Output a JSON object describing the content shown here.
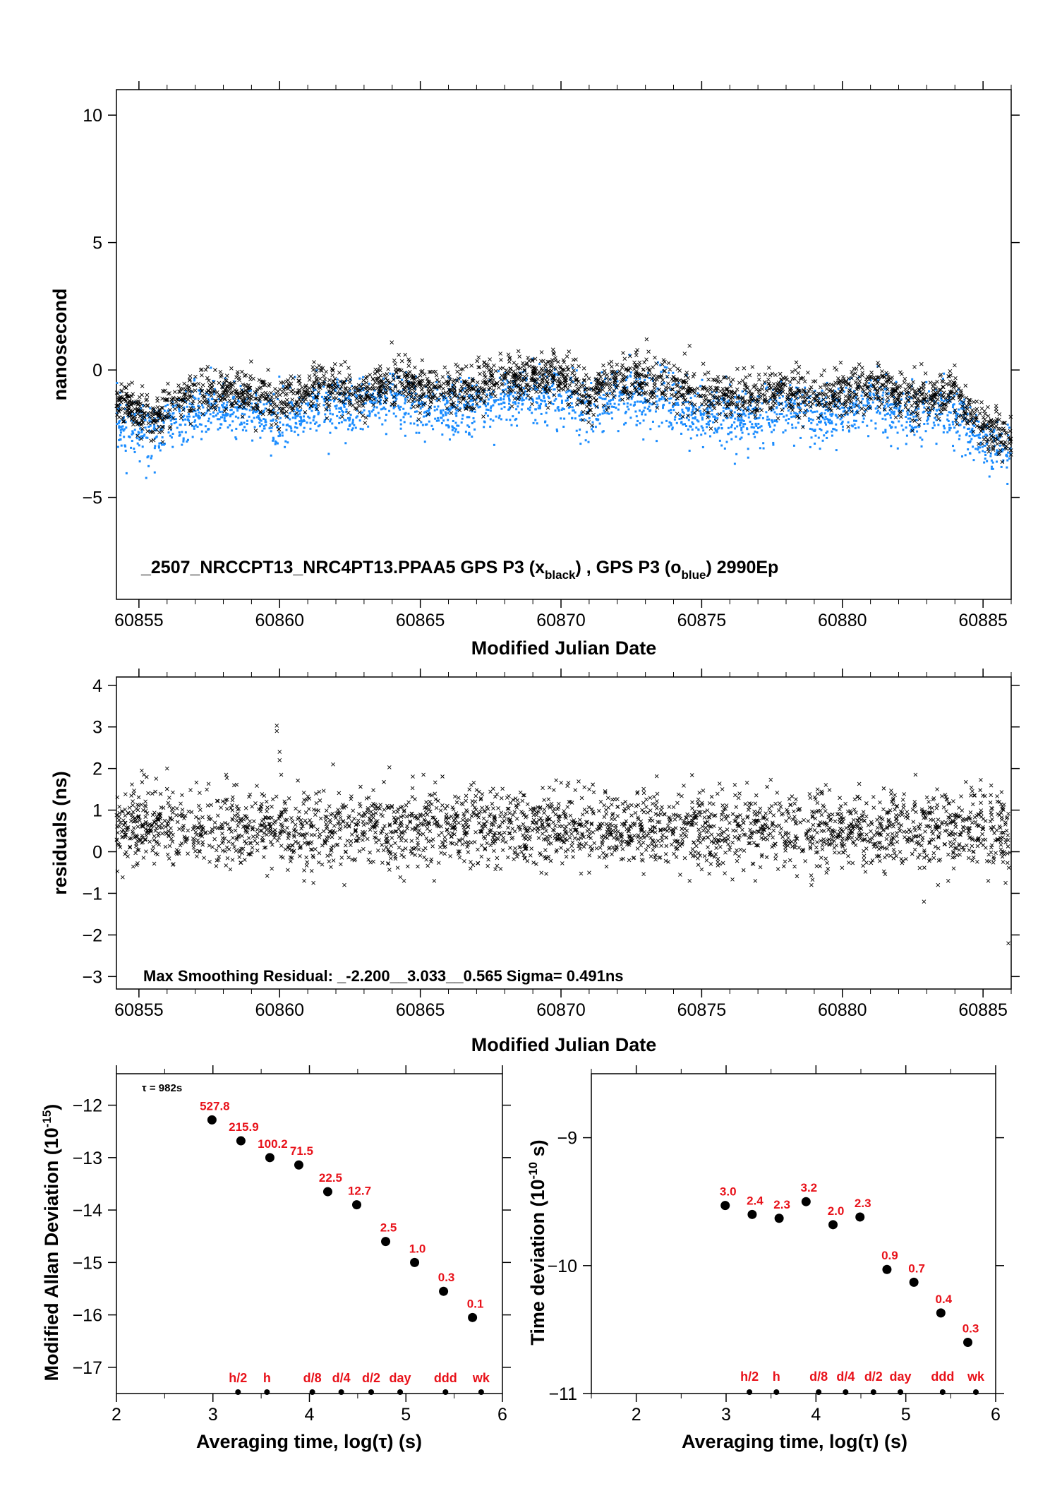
{
  "colors": {
    "series_black": "#000000",
    "series_blue": "#1a8cff",
    "labels_red": "#e8121a"
  },
  "chart_data": [
    {
      "type": "scatter",
      "xlabel": "Modified Julian Date",
      "ylabel": "nanosecond",
      "xlim": [
        60854.2,
        60886.0
      ],
      "ylim": [
        -9,
        11
      ],
      "xticks": [
        60855,
        60860,
        60865,
        60870,
        60875,
        60880,
        60885
      ],
      "yticks": [
        10,
        5,
        0,
        -5
      ],
      "ytick_labels": [
        "10",
        "5",
        "0",
        "−5"
      ],
      "annotation": "_2507_NRCCPT13_NRC4PT13.PPAA5     GPS P3 (x",
      "annotation_sub1": "black",
      "annotation_mid": ") ,  GPS P3 (o",
      "annotation_sub2": "blue",
      "annotation_end": ")  2990Ep",
      "series": [
        {
          "name": "GPS P3 (x black)",
          "marker": "x",
          "color": "#000000",
          "baseline": [
            [
              60854.2,
              -1.2
            ],
            [
              60855.5,
              -1.9
            ],
            [
              60857,
              -0.9
            ],
            [
              60858.5,
              -0.8
            ],
            [
              60860,
              -1.2
            ],
            [
              60861.5,
              -0.6
            ],
            [
              60863,
              -0.9
            ],
            [
              60864,
              -0.4
            ],
            [
              60865.5,
              -0.9
            ],
            [
              60867,
              -0.7
            ],
            [
              60868.5,
              -0.3
            ],
            [
              60870,
              -0.2
            ],
            [
              60871,
              -1.0
            ],
            [
              60872,
              -0.4
            ],
            [
              60873.5,
              -0.4
            ],
            [
              60875,
              -0.9
            ],
            [
              60876.5,
              -1.1
            ],
            [
              60878,
              -0.8
            ],
            [
              60879.5,
              -1.1
            ],
            [
              60881,
              -0.6
            ],
            [
              60882.5,
              -1.0
            ],
            [
              60884,
              -1.0
            ],
            [
              60885,
              -2.1
            ],
            [
              60886,
              -2.8
            ]
          ],
          "noise_sd": 0.45,
          "count": 2600
        },
        {
          "name": "GPS P3 (o blue)",
          "marker": "dot",
          "color": "#1a8cff",
          "baseline": [
            [
              60854.2,
              -2.0
            ],
            [
              60855.5,
              -2.5
            ],
            [
              60857,
              -1.6
            ],
            [
              60858.5,
              -1.6
            ],
            [
              60860,
              -2.0
            ],
            [
              60861.5,
              -1.4
            ],
            [
              60863,
              -1.6
            ],
            [
              60864,
              -1.1
            ],
            [
              60865.5,
              -1.6
            ],
            [
              60867,
              -1.5
            ],
            [
              60868.5,
              -1.0
            ],
            [
              60870,
              -1.0
            ],
            [
              60871,
              -1.7
            ],
            [
              60872,
              -1.1
            ],
            [
              60873.5,
              -1.2
            ],
            [
              60875,
              -1.7
            ],
            [
              60876.5,
              -1.9
            ],
            [
              60878,
              -1.6
            ],
            [
              60879.5,
              -1.8
            ],
            [
              60881,
              -1.3
            ],
            [
              60882.5,
              -1.8
            ],
            [
              60884,
              -1.7
            ],
            [
              60885,
              -2.8
            ],
            [
              60886,
              -3.4
            ]
          ],
          "noise_sd": 0.55,
          "count": 2600
        }
      ]
    },
    {
      "type": "scatter",
      "xlabel": "Modified Julian Date",
      "ylabel": "residuals (ns)",
      "xlim": [
        60854.2,
        60886.0
      ],
      "ylim": [
        -3.3,
        4.2
      ],
      "xticks": [
        60855,
        60860,
        60865,
        60870,
        60875,
        60880,
        60885
      ],
      "yticks": [
        4,
        3,
        2,
        1,
        0,
        -1,
        -2,
        -3
      ],
      "ytick_labels": [
        "4",
        "3",
        "2",
        "1",
        "0",
        "−1",
        "−2",
        "−3"
      ],
      "annotation": "Max Smoothing Residual: _-2.200__3.033__0.565  Sigma= 0.491ns",
      "series": [
        {
          "name": "residuals",
          "marker": "x",
          "color": "#000000",
          "mean": 0.55,
          "noise_sd": 0.45,
          "count": 2700,
          "outliers": [
            [
              60859.9,
              3.03
            ],
            [
              60859.9,
              2.9
            ],
            [
              60860.0,
              2.4
            ],
            [
              60860.0,
              2.2
            ],
            [
              60861.9,
              2.1
            ],
            [
              60863.9,
              2.03
            ],
            [
              60855.1,
              1.95
            ],
            [
              60856.0,
              2.0
            ],
            [
              60882.9,
              -1.2
            ],
            [
              60878.9,
              -0.8
            ],
            [
              60862.3,
              -0.8
            ],
            [
              60861.2,
              -0.75
            ],
            [
              60883.4,
              -0.8
            ],
            [
              60885.9,
              -2.2
            ],
            [
              60885.8,
              -0.75
            ]
          ]
        }
      ]
    },
    {
      "type": "scatter",
      "xlabel": "Averaging time, log(τ) (s)",
      "ylabel": "Modified Allan Deviation (10",
      "ylabel_sup": "-15",
      "ylabel_end": ")",
      "xlim": [
        2,
        6
      ],
      "ylim": [
        -17.5,
        -11.4
      ],
      "xticks": [
        2,
        3,
        4,
        5,
        6
      ],
      "xtick_labels": [
        "2",
        "3",
        "4",
        "5",
        "6"
      ],
      "yticks": [
        -12,
        -13,
        -14,
        -15,
        -16,
        -17
      ],
      "ytick_labels": [
        "−12",
        "−13",
        "−14",
        "−15",
        "−16",
        "−17"
      ],
      "tau_note": "τ = 982s",
      "points": [
        {
          "x": 2.99,
          "y": -12.28,
          "label": "527.8"
        },
        {
          "x": 3.29,
          "y": -12.68,
          "label": "215.9"
        },
        {
          "x": 3.59,
          "y": -13.0,
          "label": "100.2"
        },
        {
          "x": 3.89,
          "y": -13.14,
          "label": "71.5"
        },
        {
          "x": 4.19,
          "y": -13.65,
          "label": "22.5"
        },
        {
          "x": 4.49,
          "y": -13.9,
          "label": "12.7"
        },
        {
          "x": 4.79,
          "y": -14.6,
          "label": "2.5"
        },
        {
          "x": 5.09,
          "y": -15.0,
          "label": "1.0"
        },
        {
          "x": 5.39,
          "y": -15.55,
          "label": "0.3"
        },
        {
          "x": 5.69,
          "y": -16.05,
          "label": "0.1"
        }
      ],
      "markers": [
        {
          "x": 3.26,
          "label": "h/2"
        },
        {
          "x": 3.56,
          "label": "h"
        },
        {
          "x": 4.03,
          "label": "d/8"
        },
        {
          "x": 4.33,
          "label": "d/4"
        },
        {
          "x": 4.64,
          "label": "d/2"
        },
        {
          "x": 4.94,
          "label": "day"
        },
        {
          "x": 5.41,
          "label": "ddd"
        },
        {
          "x": 5.78,
          "label": "wk"
        }
      ]
    },
    {
      "type": "scatter",
      "xlabel": "Averaging time, log(τ) (s)",
      "ylabel": "Time deviation (10",
      "ylabel_sup": "-10",
      "ylabel_end": " s)",
      "xlim": [
        1.5,
        6.0
      ],
      "ylim": [
        -11,
        -8.5
      ],
      "xticks": [
        2,
        3,
        4,
        5,
        6
      ],
      "xtick_labels": [
        "2",
        "3",
        "4",
        "5",
        "6"
      ],
      "yticks": [
        -9,
        -10,
        -11
      ],
      "ytick_labels": [
        "−9",
        "−10",
        "−11"
      ],
      "points": [
        {
          "x": 2.99,
          "y": -9.53,
          "label": "3.0"
        },
        {
          "x": 3.29,
          "y": -9.6,
          "label": "2.4"
        },
        {
          "x": 3.59,
          "y": -9.63,
          "label": "2.3"
        },
        {
          "x": 3.89,
          "y": -9.5,
          "label": "3.2"
        },
        {
          "x": 4.19,
          "y": -9.68,
          "label": "2.0"
        },
        {
          "x": 4.49,
          "y": -9.62,
          "label": "2.3"
        },
        {
          "x": 4.79,
          "y": -10.03,
          "label": "0.9"
        },
        {
          "x": 5.09,
          "y": -10.13,
          "label": "0.7"
        },
        {
          "x": 5.39,
          "y": -10.37,
          "label": "0.4"
        },
        {
          "x": 5.69,
          "y": -10.6,
          "label": "0.3"
        }
      ],
      "markers": [
        {
          "x": 3.26,
          "label": "h/2"
        },
        {
          "x": 3.56,
          "label": "h"
        },
        {
          "x": 4.03,
          "label": "d/8"
        },
        {
          "x": 4.33,
          "label": "d/4"
        },
        {
          "x": 4.64,
          "label": "d/2"
        },
        {
          "x": 4.94,
          "label": "day"
        },
        {
          "x": 5.41,
          "label": "ddd"
        },
        {
          "x": 5.78,
          "label": "wk"
        }
      ]
    }
  ]
}
